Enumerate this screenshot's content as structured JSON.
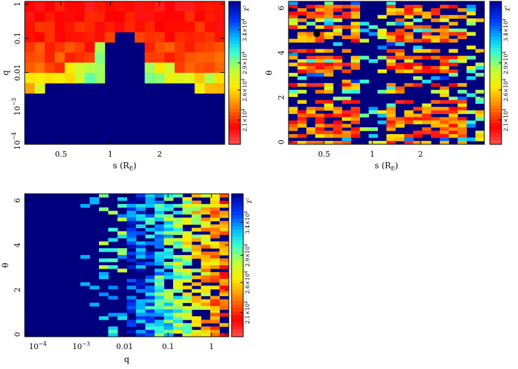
{
  "chart_data": [
    {
      "type": "heatmap",
      "panel": "top-left",
      "xlabel": "s (R_E)",
      "ylabel": "q",
      "x_scale": "log",
      "y_scale": "log",
      "xlim": [
        0.3,
        5.0
      ],
      "ylim": [
        8e-05,
        1.2
      ],
      "x_ticks": [
        {
          "value": 0.5,
          "label": "0.5"
        },
        {
          "value": 1,
          "label": "1"
        },
        {
          "value": 2,
          "label": "2"
        }
      ],
      "y_ticks": [
        {
          "value": 0.0001,
          "label": "10^-4"
        },
        {
          "value": 0.001,
          "label": "10^-3"
        },
        {
          "value": 0.01,
          "label": "0.01"
        },
        {
          "value": 0.1,
          "label": "0.1"
        },
        {
          "value": 1,
          "label": "1"
        }
      ],
      "colorbar": {
        "label": "χ²",
        "ticks": [
          "2.1×10^4",
          "2.6×10^4",
          "2.9×10^4",
          "3.4×10^4"
        ]
      },
      "background_color": "#00007f"
    },
    {
      "type": "heatmap",
      "panel": "top-right",
      "xlabel": "s (R_E)",
      "ylabel": "θ",
      "x_scale": "log",
      "xlim": [
        0.3,
        5.0
      ],
      "ylim": [
        -0.1,
        6.3
      ],
      "x_ticks": [
        {
          "value": 0.5,
          "label": "0.5"
        },
        {
          "value": 1,
          "label": "1"
        },
        {
          "value": 2,
          "label": "2"
        }
      ],
      "y_ticks": [
        {
          "value": 0,
          "label": "0"
        },
        {
          "value": 2,
          "label": "2"
        },
        {
          "value": 4,
          "label": "4"
        },
        {
          "value": 6,
          "label": "6"
        }
      ],
      "colorbar": {
        "label": "χ²",
        "ticks": [
          "2.1×10^4",
          "2.6×10^4",
          "2.9×10^4",
          "3.4×10^4"
        ]
      },
      "marker": {
        "x": 0.45,
        "y": 4.85
      },
      "background_color": "#00007f"
    },
    {
      "type": "heatmap",
      "panel": "bottom-left",
      "xlabel": "q",
      "ylabel": "θ",
      "x_scale": "log",
      "xlim": [
        5e-05,
        2.5
      ],
      "ylim": [
        -0.1,
        6.3
      ],
      "x_ticks": [
        {
          "value": 0.0001,
          "label": "10^-4"
        },
        {
          "value": 0.001,
          "label": "10^-3"
        },
        {
          "value": 0.01,
          "label": "0.01"
        },
        {
          "value": 0.1,
          "label": "0.1"
        },
        {
          "value": 1,
          "label": "1"
        }
      ],
      "y_ticks": [
        {
          "value": 0,
          "label": "0"
        },
        {
          "value": 2,
          "label": "2"
        },
        {
          "value": 4,
          "label": "4"
        },
        {
          "value": 6,
          "label": "6"
        }
      ],
      "colorbar": {
        "label": "χ²",
        "ticks": [
          "2.1×10^4",
          "2.6×10^4",
          "2.9×10^4",
          "3.4×10^4"
        ]
      },
      "background_color": "#00007f"
    }
  ]
}
